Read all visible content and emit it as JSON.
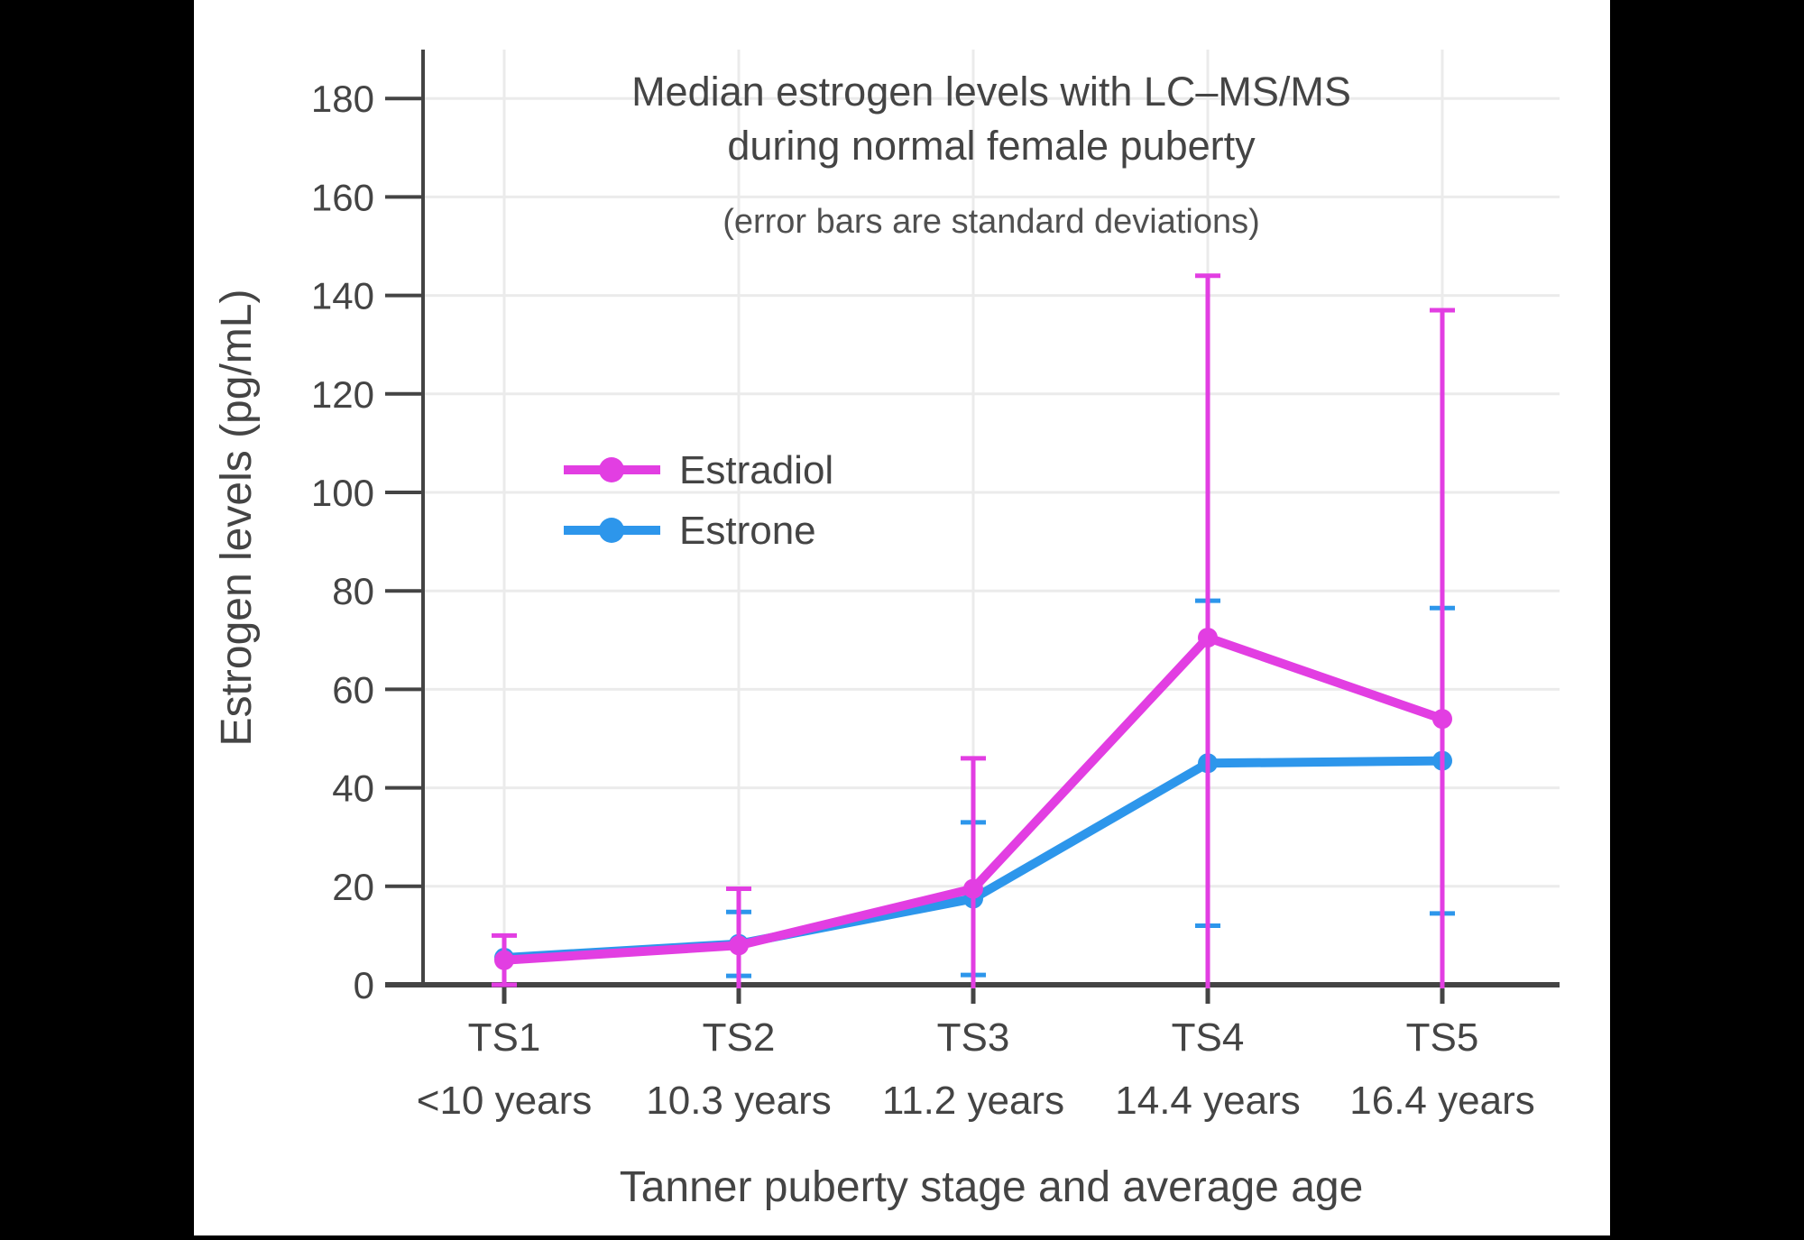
{
  "canvas": {
    "background": "#000000",
    "panel_background": "#ffffff",
    "text_color": "#444444",
    "subtitle_color": "#505050",
    "grid_color": "#EBEBEB",
    "axis_color": "#444444"
  },
  "chart_data": {
    "type": "line",
    "title_lines": [
      "Median estrogen levels with LC–MS/MS",
      "during normal female puberty"
    ],
    "subtitle": "(error bars are standard deviations)",
    "xlabel": "Tanner puberty stage and average age",
    "ylabel": "Estrogen levels (pg/mL)",
    "categories": [
      "TS1",
      "TS2",
      "TS3",
      "TS4",
      "TS5"
    ],
    "category_ages": [
      "<10 years",
      "10.3 years",
      "11.2 years",
      "14.4 years",
      "16.4 years"
    ],
    "y_ticks": [
      0,
      20,
      40,
      60,
      80,
      100,
      120,
      140,
      160,
      180
    ],
    "ylim": [
      0,
      190
    ],
    "grid": true,
    "series": [
      {
        "name": "Estrone",
        "color": "#2D96EB",
        "values": [
          5.5,
          8.3,
          17.5,
          45,
          45.5
        ],
        "sd": [
          null,
          6.5,
          15.5,
          33,
          31
        ]
      },
      {
        "name": "Estradiol",
        "color": "#E23EE2",
        "values": [
          5,
          8,
          19.5,
          70.5,
          54
        ],
        "sd": [
          5,
          11.5,
          26.5,
          73.5,
          83
        ]
      }
    ],
    "legend": {
      "position": "inside-upper-left",
      "entries": [
        "Estradiol",
        "Estrone"
      ]
    }
  }
}
